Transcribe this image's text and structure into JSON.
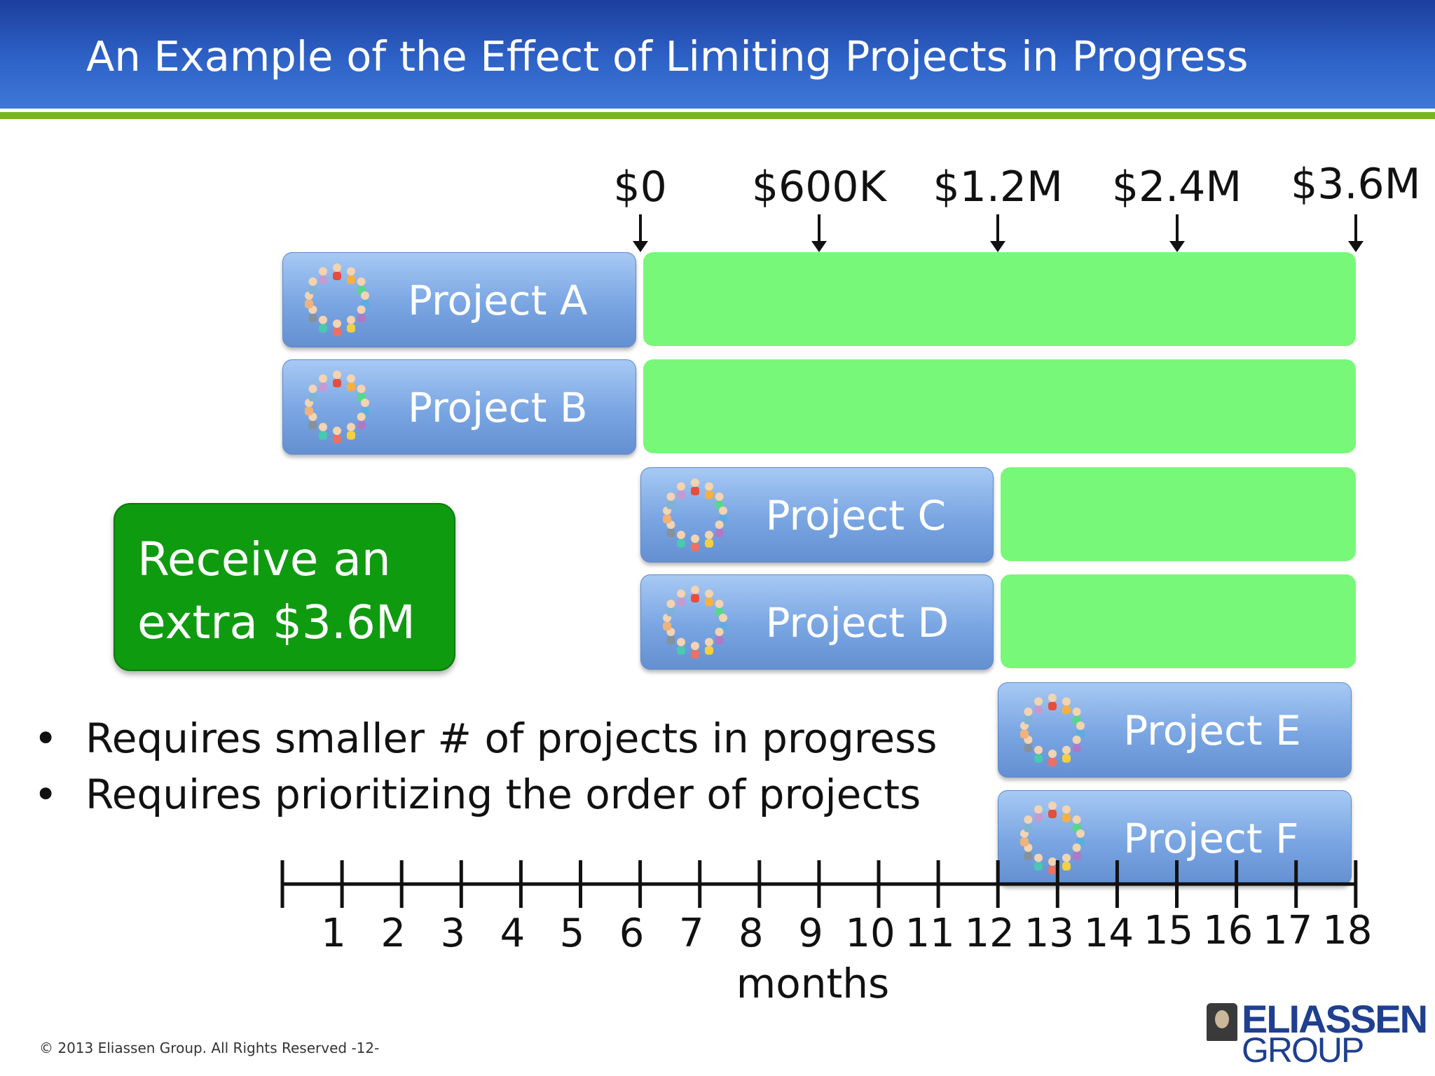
{
  "title": "An Example of the Effect of Limiting Projects in Progress",
  "value_markers": [
    {
      "label": "$0",
      "month": 6
    },
    {
      "label": "$600K",
      "month": 9
    },
    {
      "label": "$1.2M",
      "month": 12
    },
    {
      "label": "$2.4M",
      "month": 15
    },
    {
      "label": "$3.6M",
      "month": 18
    }
  ],
  "projects": [
    {
      "name": "Project A",
      "start": 0,
      "end": 6,
      "value_end": 18
    },
    {
      "name": "Project B",
      "start": 0,
      "end": 6,
      "value_end": 18
    },
    {
      "name": "Project C",
      "start": 6,
      "end": 12,
      "value_end": 18
    },
    {
      "name": "Project D",
      "start": 6,
      "end": 12,
      "value_end": 18
    },
    {
      "name": "Project E",
      "start": 12,
      "end": 18,
      "value_end": null
    },
    {
      "name": "Project F",
      "start": 12,
      "end": 18,
      "value_end": null
    }
  ],
  "callout": {
    "line1": "Receive an",
    "line2": "extra $3.6M"
  },
  "bullets": [
    "Requires smaller # of projects in progress",
    "Requires prioritizing the order of projects"
  ],
  "timeline": {
    "months": [
      "1",
      "2",
      "3",
      "4",
      "5",
      "6",
      "7",
      "8",
      "9",
      "10",
      "11",
      "12",
      "13",
      "14",
      "15",
      "16",
      "17",
      "18"
    ],
    "label": "months"
  },
  "footer": "© 2013 Eliassen Group. All Rights Reserved -12-",
  "logo": {
    "line1": "ELIASSEN",
    "line2": "GROUP"
  },
  "colors": {
    "header": "#2e62c7",
    "accent_line": "#78b61e",
    "value_bar": "#78f878",
    "callout": "#0f9b0f",
    "project": "#79a5e2"
  }
}
